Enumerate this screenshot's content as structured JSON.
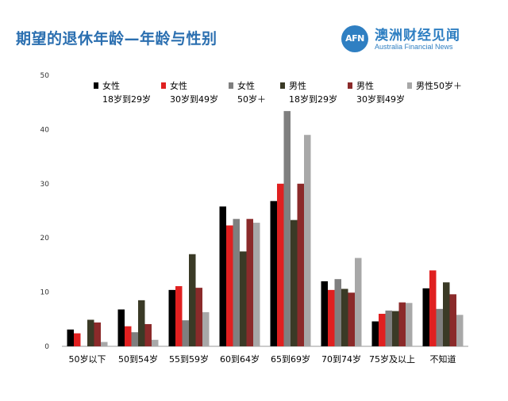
{
  "header": {
    "title": "期望的退休年龄—年龄与性别"
  },
  "logo": {
    "mark": "AFN",
    "name_cn": "澳洲财经见闻",
    "name_en": "Australia Financial News"
  },
  "chart_data": {
    "type": "bar",
    "title": "期望的退休年龄—年龄与性别",
    "xlabel": "",
    "ylabel": "",
    "ylim": [
      0,
      50
    ],
    "yticks": [
      0,
      10,
      20,
      30,
      40,
      50
    ],
    "grid": false,
    "legend": "top",
    "categories": [
      "50岁以下",
      "50到54岁",
      "55到59岁",
      "60到64岁",
      "65到69岁",
      "70到74岁",
      "75岁及以上",
      "不知道"
    ],
    "series": [
      {
        "name_line1": "女性",
        "name_line2": "18岁到29岁",
        "color": "#000000",
        "values": [
          3.1,
          6.8,
          10.4,
          25.8,
          26.8,
          12.0,
          4.6,
          10.7
        ]
      },
      {
        "name_line1": "女性",
        "name_line2": "30岁到49岁",
        "color": "#e02020",
        "values": [
          2.4,
          3.7,
          11.1,
          22.3,
          30.0,
          10.4,
          6.0,
          14.0
        ]
      },
      {
        "name_line1": "女性",
        "name_line2": "50岁＋",
        "color": "#7f7f7f",
        "values": [
          0.0,
          2.6,
          4.8,
          23.5,
          43.4,
          12.4,
          6.6,
          6.9
        ]
      },
      {
        "name_line1": "男性",
        "name_line2": "18岁到29岁",
        "color": "#3a3a26",
        "values": [
          4.9,
          8.5,
          17.0,
          17.5,
          23.3,
          10.6,
          6.5,
          11.8
        ]
      },
      {
        "name_line1": "男性",
        "name_line2": "30岁到49岁",
        "color": "#8b2a2a",
        "values": [
          4.4,
          4.1,
          10.8,
          23.5,
          30.0,
          9.9,
          8.1,
          9.6
        ]
      },
      {
        "name_line1": "男性50岁＋",
        "name_line2": "",
        "color": "#a8a8a8",
        "values": [
          0.8,
          1.2,
          6.3,
          22.8,
          39.0,
          16.3,
          8.0,
          5.8
        ]
      }
    ]
  }
}
